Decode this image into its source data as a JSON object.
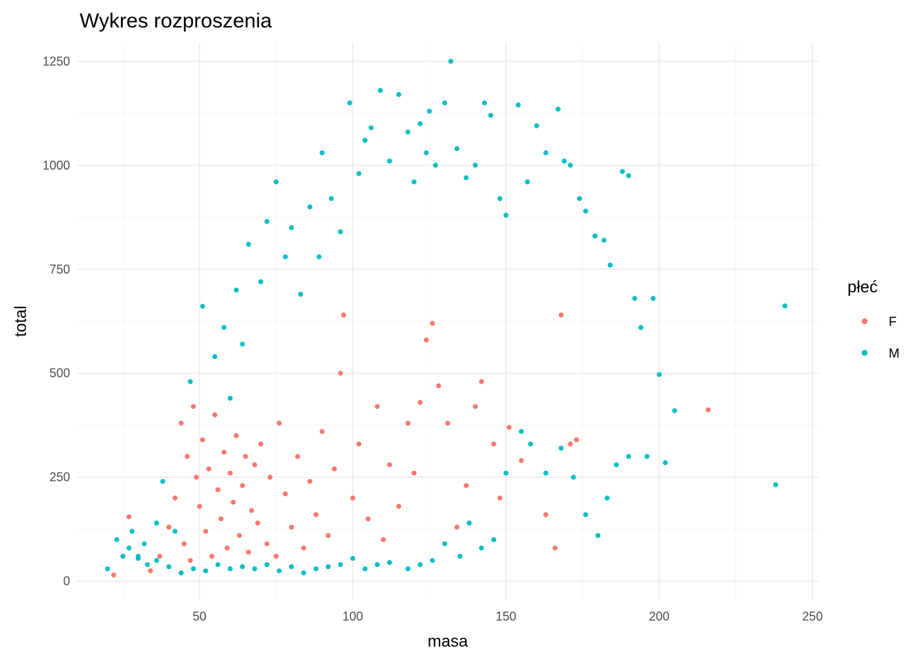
{
  "chart_data": {
    "type": "scatter",
    "title": "Wykres rozproszenia",
    "xlabel": "masa",
    "ylabel": "total",
    "xlim": [
      10,
      252
    ],
    "ylim": [
      -45,
      1295
    ],
    "x_ticks": [
      50,
      100,
      150,
      200,
      250
    ],
    "y_ticks": [
      0,
      250,
      500,
      750,
      1000,
      1250
    ],
    "grid": true,
    "legend": {
      "title": "płeć",
      "position": "right",
      "entries": [
        {
          "label": "F",
          "color": "#F8766D"
        },
        {
          "label": "M",
          "color": "#00BFC4"
        }
      ]
    },
    "series": [
      {
        "name": "F",
        "color": "#F8766D",
        "points": [
          [
            22,
            15
          ],
          [
            27,
            155
          ],
          [
            34,
            25
          ],
          [
            37,
            60
          ],
          [
            40,
            130
          ],
          [
            42,
            200
          ],
          [
            44,
            380
          ],
          [
            45,
            90
          ],
          [
            46,
            300
          ],
          [
            47,
            50
          ],
          [
            48,
            420
          ],
          [
            49,
            250
          ],
          [
            50,
            180
          ],
          [
            51,
            340
          ],
          [
            52,
            120
          ],
          [
            53,
            270
          ],
          [
            54,
            60
          ],
          [
            55,
            400
          ],
          [
            56,
            220
          ],
          [
            57,
            150
          ],
          [
            58,
            310
          ],
          [
            59,
            80
          ],
          [
            60,
            260
          ],
          [
            61,
            190
          ],
          [
            62,
            350
          ],
          [
            63,
            110
          ],
          [
            64,
            230
          ],
          [
            65,
            300
          ],
          [
            66,
            70
          ],
          [
            67,
            170
          ],
          [
            68,
            280
          ],
          [
            69,
            140
          ],
          [
            70,
            330
          ],
          [
            72,
            90
          ],
          [
            73,
            250
          ],
          [
            75,
            60
          ],
          [
            76,
            380
          ],
          [
            78,
            210
          ],
          [
            80,
            130
          ],
          [
            82,
            300
          ],
          [
            84,
            80
          ],
          [
            86,
            240
          ],
          [
            88,
            160
          ],
          [
            90,
            360
          ],
          [
            92,
            110
          ],
          [
            94,
            270
          ],
          [
            96,
            500
          ],
          [
            97,
            640
          ],
          [
            100,
            200
          ],
          [
            102,
            330
          ],
          [
            105,
            150
          ],
          [
            108,
            420
          ],
          [
            110,
            100
          ],
          [
            112,
            280
          ],
          [
            115,
            180
          ],
          [
            118,
            380
          ],
          [
            120,
            260
          ],
          [
            122,
            430
          ],
          [
            124,
            580
          ],
          [
            126,
            620
          ],
          [
            128,
            470
          ],
          [
            131,
            380
          ],
          [
            134,
            130
          ],
          [
            137,
            230
          ],
          [
            140,
            420
          ],
          [
            142,
            480
          ],
          [
            146,
            330
          ],
          [
            148,
            200
          ],
          [
            151,
            370
          ],
          [
            155,
            290
          ],
          [
            163,
            160
          ],
          [
            166,
            80
          ],
          [
            168,
            640
          ],
          [
            171,
            330
          ],
          [
            173,
            340
          ],
          [
            216,
            412
          ]
        ]
      },
      {
        "name": "M",
        "color": "#00BFC4",
        "points": [
          [
            20,
            30
          ],
          [
            23,
            100
          ],
          [
            30,
            60
          ],
          [
            36,
            140
          ],
          [
            38,
            240
          ],
          [
            42,
            120
          ],
          [
            47,
            480
          ],
          [
            51,
            661
          ],
          [
            55,
            540
          ],
          [
            58,
            610
          ],
          [
            60,
            440
          ],
          [
            62,
            700
          ],
          [
            64,
            570
          ],
          [
            66,
            810
          ],
          [
            70,
            720
          ],
          [
            72,
            865
          ],
          [
            75,
            960
          ],
          [
            78,
            780
          ],
          [
            80,
            850
          ],
          [
            83,
            690
          ],
          [
            86,
            900
          ],
          [
            89,
            780
          ],
          [
            90,
            1030
          ],
          [
            93,
            920
          ],
          [
            96,
            840
          ],
          [
            99,
            1150
          ],
          [
            102,
            980
          ],
          [
            104,
            1060
          ],
          [
            106,
            1090
          ],
          [
            109,
            1180
          ],
          [
            112,
            1010
          ],
          [
            115,
            1170
          ],
          [
            118,
            1080
          ],
          [
            120,
            960
          ],
          [
            122,
            1100
          ],
          [
            124,
            1030
          ],
          [
            125,
            1130
          ],
          [
            127,
            1000
          ],
          [
            130,
            1150
          ],
          [
            132,
            1250
          ],
          [
            134,
            1040
          ],
          [
            137,
            970
          ],
          [
            140,
            1000
          ],
          [
            143,
            1150
          ],
          [
            145,
            1120
          ],
          [
            148,
            920
          ],
          [
            150,
            880
          ],
          [
            154,
            1145
          ],
          [
            157,
            960
          ],
          [
            160,
            1095
          ],
          [
            163,
            1030
          ],
          [
            167,
            1135
          ],
          [
            169,
            1010
          ],
          [
            171,
            1000
          ],
          [
            174,
            920
          ],
          [
            176,
            890
          ],
          [
            179,
            830
          ],
          [
            182,
            820
          ],
          [
            184,
            760
          ],
          [
            188,
            985
          ],
          [
            190,
            975
          ],
          [
            192,
            680
          ],
          [
            194,
            610
          ],
          [
            198,
            680
          ],
          [
            200,
            497
          ],
          [
            205,
            410
          ],
          [
            241,
            662
          ],
          [
            238,
            232
          ],
          [
            202,
            285
          ],
          [
            196,
            300
          ],
          [
            190,
            300
          ],
          [
            186,
            280
          ],
          [
            183,
            200
          ],
          [
            180,
            110
          ],
          [
            176,
            160
          ],
          [
            172,
            250
          ],
          [
            168,
            320
          ],
          [
            163,
            260
          ],
          [
            158,
            330
          ],
          [
            155,
            360
          ],
          [
            150,
            260
          ],
          [
            146,
            100
          ],
          [
            142,
            80
          ],
          [
            138,
            140
          ],
          [
            135,
            60
          ],
          [
            130,
            90
          ],
          [
            126,
            50
          ],
          [
            122,
            40
          ],
          [
            118,
            30
          ],
          [
            112,
            45
          ],
          [
            108,
            40
          ],
          [
            104,
            30
          ],
          [
            100,
            55
          ],
          [
            96,
            40
          ],
          [
            92,
            35
          ],
          [
            88,
            30
          ],
          [
            84,
            20
          ],
          [
            80,
            35
          ],
          [
            76,
            25
          ],
          [
            72,
            40
          ],
          [
            68,
            30
          ],
          [
            64,
            35
          ],
          [
            60,
            30
          ],
          [
            56,
            40
          ],
          [
            52,
            25
          ],
          [
            48,
            30
          ],
          [
            44,
            20
          ],
          [
            40,
            35
          ],
          [
            36,
            50
          ],
          [
            33,
            40
          ],
          [
            30,
            55
          ],
          [
            27,
            80
          ],
          [
            25,
            60
          ],
          [
            28,
            120
          ],
          [
            32,
            90
          ]
        ]
      }
    ]
  }
}
